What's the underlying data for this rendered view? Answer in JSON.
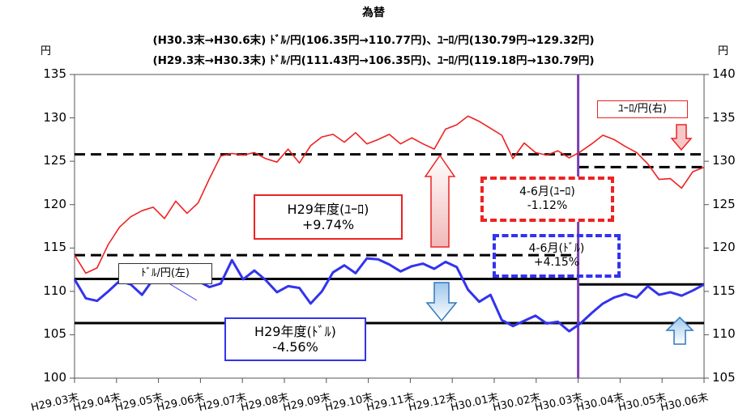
{
  "chart_data": {
    "type": "line",
    "title": "為替",
    "subtitle_lines": [
      "(H30.3末→H30.6末) ﾄﾞﾙ/円(106.35円→110.77円)、ﾕｰﾛ/円(130.79円→129.32円)",
      "(H29.3末→H30.3末) ﾄﾞﾙ/円(111.43円→106.35円)、ﾕｰﾛ/円(119.18円→130.79円)"
    ],
    "y_left": {
      "unit": "円",
      "min": 100,
      "max": 135,
      "ticks": [
        100,
        105,
        110,
        115,
        120,
        125,
        130,
        135
      ]
    },
    "y_right": {
      "unit": "円",
      "min": 105,
      "max": 140,
      "ticks": [
        105,
        110,
        115,
        120,
        125,
        130,
        135,
        140
      ]
    },
    "x_labels": [
      "H29.03末",
      "H29.04末",
      "H29.05末",
      "H29.06末",
      "H29.07末",
      "H29.08末",
      "H29.09末",
      "H29.10末",
      "H29.11末",
      "H29.12末",
      "H30.01末",
      "H30.02末",
      "H30.03末",
      "H30.04末",
      "H30.05末",
      "H30.06末"
    ],
    "series": [
      {
        "name": "ﾄﾞﾙ/円(左)",
        "axis": "left",
        "color": "#3333ee",
        "values": [
          111.4,
          109.2,
          108.9,
          110.0,
          111.2,
          110.8,
          109.6,
          111.4,
          112.5,
          111.8,
          112.8,
          111.2,
          110.5,
          110.9,
          113.6,
          111.4,
          112.4,
          111.3,
          109.9,
          110.6,
          110.4,
          108.6,
          110.0,
          112.2,
          113.0,
          112.1,
          113.8,
          113.7,
          113.1,
          112.3,
          112.9,
          113.2,
          112.6,
          113.4,
          112.8,
          110.2,
          108.8,
          109.6,
          106.7,
          106.0,
          106.6,
          107.2,
          106.3,
          106.5,
          105.4,
          106.3,
          107.5,
          108.6,
          109.3,
          109.7,
          109.3,
          110.6,
          109.6,
          109.9,
          109.5,
          110.1,
          110.8
        ]
      },
      {
        "name": "ﾕｰﾛ/円(右)",
        "axis": "right",
        "color": "#ee2222",
        "values": [
          119.2,
          117.1,
          117.7,
          120.4,
          122.4,
          123.6,
          124.3,
          124.7,
          123.4,
          125.4,
          124.0,
          125.2,
          128.0,
          130.6,
          130.9,
          130.7,
          131.0,
          130.3,
          129.9,
          131.4,
          129.8,
          131.8,
          132.8,
          133.1,
          132.2,
          133.3,
          132.0,
          132.5,
          133.1,
          132.0,
          132.7,
          132.0,
          131.4,
          133.7,
          134.2,
          135.2,
          134.6,
          133.8,
          133.0,
          130.3,
          132.1,
          131.0,
          130.7,
          131.2,
          130.4,
          131.1,
          132.0,
          133.0,
          132.5,
          131.7,
          131.0,
          129.7,
          127.9,
          128.0,
          126.9,
          128.8,
          129.3
        ]
      }
    ],
    "reference_lines": [
      {
        "axis": "left",
        "value": 111.43,
        "style": "solid",
        "color": "#000000"
      },
      {
        "axis": "left",
        "value": 106.35,
        "style": "solid",
        "color": "#000000"
      },
      {
        "axis": "right",
        "value": 119.18,
        "style": "dashed",
        "color": "#000000"
      },
      {
        "axis": "right",
        "value": 130.79,
        "style": "dashed",
        "color": "#000000"
      },
      {
        "axis": "right",
        "value": 129.32,
        "style": "dashed",
        "color": "#000000"
      }
    ],
    "period_divider": {
      "at": "H30.03末",
      "color": "#7b3fb3"
    },
    "annotations": {
      "euro_fy": {
        "line1": "H29年度(ﾕｰﾛ)",
        "line2": "+9.74%",
        "color": "#ee2222"
      },
      "dollar_fy": {
        "line1": "H29年度(ﾄﾞﾙ)",
        "line2": "-4.56%",
        "color": "#3333ee"
      },
      "euro_q": {
        "line1": "4-6月(ﾕｰﾛ)",
        "line2": "-1.12%",
        "color": "#ee2222"
      },
      "dollar_q": {
        "line1": "4-6月(ﾄﾞﾙ)",
        "line2": "+4.15%",
        "color": "#3333ee"
      }
    },
    "legend_labels": {
      "dollar": "ﾄﾞﾙ/円(左)",
      "euro": "ﾕｰﾛ/円(右)"
    },
    "grid": false
  }
}
